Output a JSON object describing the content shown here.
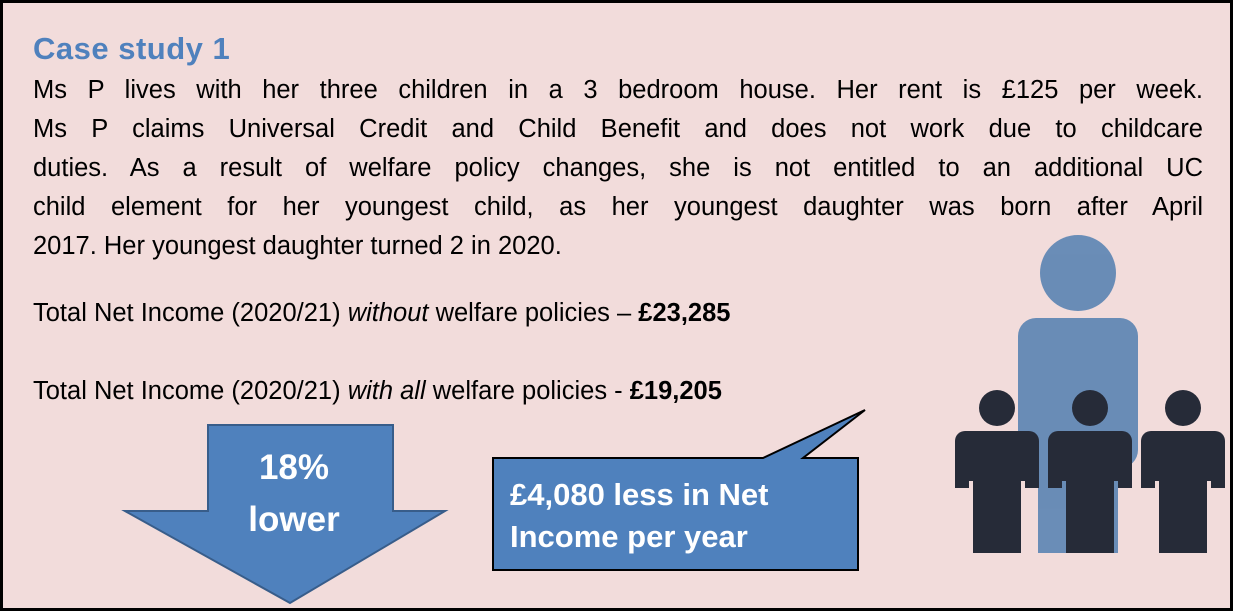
{
  "title": "Case study 1",
  "paragraph": {
    "lines": [
      "Ms P lives with her three children in a 3 bedroom house. Her rent is £125 per week.",
      "Ms P claims Universal Credit and Child Benefit and does not work due to childcare",
      "duties. As a result of welfare policy changes, she is not entitled to an additional UC",
      "child element for her youngest child, as her youngest daughter was born after April",
      "2017. Her youngest daughter turned 2 in 2020."
    ]
  },
  "income_without": {
    "prefix": "Total Net Income (2020/21)",
    "emphasis": "without",
    "suffix": "welfare policies –",
    "amount": "£23,285"
  },
  "income_with": {
    "prefix": "Total Net Income (2020/21)",
    "emphasis": "with all",
    "suffix": "welfare policies -",
    "amount": "£19,205"
  },
  "arrow": {
    "lines": [
      "18%",
      "lower"
    ]
  },
  "callout": {
    "lines": [
      "£4,080 less in Net",
      "Income per year"
    ]
  }
}
